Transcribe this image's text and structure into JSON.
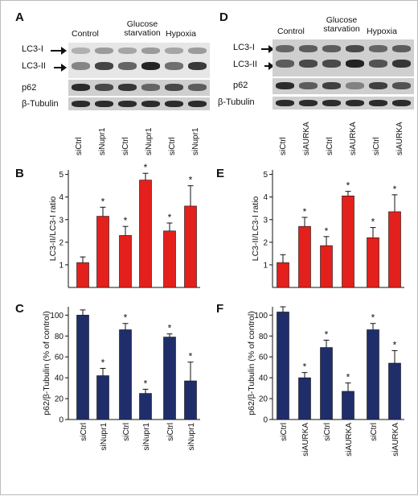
{
  "panel_letters": {
    "A": "A",
    "B": "B",
    "C": "C",
    "D": "D",
    "E": "E",
    "F": "F"
  },
  "blots": {
    "left": {
      "conditions": [
        "Control",
        "Glucose starvation",
        "Hypoxia"
      ],
      "rows": [
        "LC3-I",
        "LC3-II",
        "p62",
        "β-Tubulin"
      ],
      "lanes": [
        "siCtrl",
        "siNupr1",
        "siCtrl",
        "siNupr1",
        "siCtrl",
        "siNupr1"
      ]
    },
    "right": {
      "conditions": [
        "Control",
        "Glucose starvation",
        "Hypoxia"
      ],
      "rows": [
        "LC3-I",
        "LC3-II",
        "p62",
        "β-Tubulin"
      ],
      "lanes": [
        "siCtrl",
        "siAURKA",
        "siCtrl",
        "siAURKA",
        "siCtrl",
        "siAURKA"
      ]
    }
  },
  "chart_data": [
    {
      "panel": "B",
      "type": "bar",
      "categories": [
        "siCtrl",
        "siNupr1",
        "siCtrl",
        "siNupr1",
        "siCtrl",
        "siNupr1"
      ],
      "values": [
        1.1,
        3.15,
        2.3,
        4.75,
        2.5,
        3.6
      ],
      "errors": [
        0.25,
        0.4,
        0.4,
        0.3,
        0.35,
        0.9
      ],
      "significant": [
        false,
        true,
        true,
        true,
        true,
        true
      ],
      "ylabel": "LC3-II/LC3-I ratio",
      "yticks": [
        1,
        2,
        3,
        4,
        5
      ],
      "ylim": [
        0,
        5.2
      ],
      "color": "#e4201c",
      "show_x_labels": false
    },
    {
      "panel": "C",
      "type": "bar",
      "categories": [
        "siCtrl",
        "siNupr1",
        "siCtrl",
        "siNupr1",
        "siCtrl",
        "siNupr1"
      ],
      "values": [
        100,
        42,
        86,
        25,
        79,
        37
      ],
      "errors": [
        5,
        7,
        6,
        4,
        3,
        18
      ],
      "significant": [
        false,
        true,
        true,
        true,
        true,
        true
      ],
      "ylabel": "p62/β-Tubulin (% of control)",
      "yticks": [
        0,
        20,
        40,
        60,
        80,
        100
      ],
      "ylim": [
        0,
        108
      ],
      "color": "#1f2e6b",
      "show_x_labels": true
    },
    {
      "panel": "E",
      "type": "bar",
      "categories": [
        "siCtrl",
        "siAURKA",
        "siCtrl",
        "siAURKA",
        "siCtrl",
        "siAURKA"
      ],
      "values": [
        1.1,
        2.7,
        1.85,
        4.05,
        2.2,
        3.35
      ],
      "errors": [
        0.35,
        0.4,
        0.4,
        0.2,
        0.45,
        0.75
      ],
      "significant": [
        false,
        true,
        true,
        true,
        true,
        true
      ],
      "ylabel": "LC3-II/LC3-I ratio",
      "yticks": [
        1,
        2,
        3,
        4,
        5
      ],
      "ylim": [
        0,
        5.2
      ],
      "color": "#e4201c",
      "show_x_labels": false
    },
    {
      "panel": "F",
      "type": "bar",
      "categories": [
        "siCtrl",
        "siAURKA",
        "siCtrl",
        "siAURKA",
        "siCtrl",
        "siAURKA"
      ],
      "values": [
        103,
        40,
        69,
        27,
        86,
        54
      ],
      "errors": [
        5,
        5,
        7,
        8,
        6,
        12
      ],
      "significant": [
        false,
        true,
        true,
        true,
        true,
        true
      ],
      "ylabel": "p62/β-Tubulin (% of control)",
      "yticks": [
        0,
        20,
        40,
        60,
        80,
        100
      ],
      "ylim": [
        0,
        108
      ],
      "color": "#1f2e6b",
      "show_x_labels": true
    }
  ],
  "significance_marker": "*",
  "colors": {
    "red": "#e4201c",
    "navy": "#1f2e6b"
  }
}
